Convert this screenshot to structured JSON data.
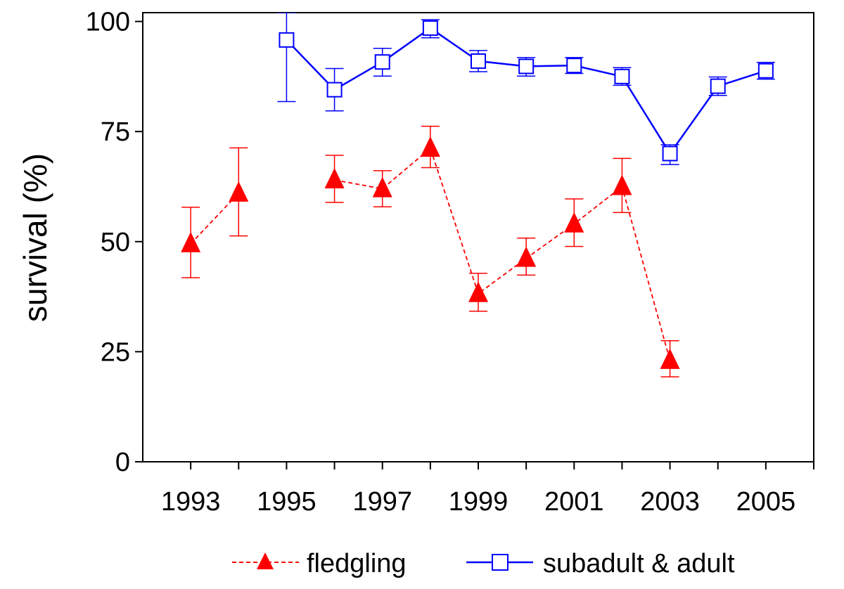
{
  "chart_data": {
    "type": "line",
    "title": "",
    "xlabel": "",
    "ylabel": "survival (%)",
    "xlim": [
      1992,
      2006
    ],
    "ylim": [
      0,
      102
    ],
    "x_ticks": [
      1993,
      1994,
      1995,
      1996,
      1997,
      1998,
      1999,
      2000,
      2001,
      2002,
      2003,
      2004,
      2005,
      2006
    ],
    "x_tick_labels": [
      "1993",
      "1995",
      "1997",
      "1999",
      "2001",
      "2003",
      "2005"
    ],
    "x_tick_label_years": [
      1993,
      1995,
      1997,
      1999,
      2001,
      2003,
      2005
    ],
    "y_ticks": [
      0,
      25,
      50,
      75,
      100
    ],
    "y_tick_labels": [
      "0",
      "25",
      "50",
      "75",
      "100"
    ],
    "grid": false,
    "legend_position": "bottom",
    "series": [
      {
        "name": "fledgling",
        "color": "#ff0000",
        "line_style": "dashed",
        "marker": "filled-triangle",
        "segments": [
          [
            {
              "x": 1993,
              "y": 49.5,
              "lo": 41.8,
              "hi": 57.8
            },
            {
              "x": 1994,
              "y": 61.0,
              "lo": 51.3,
              "hi": 71.3
            }
          ],
          [
            {
              "x": 1996,
              "y": 64.0,
              "lo": 58.9,
              "hi": 69.6
            },
            {
              "x": 1997,
              "y": 62.0,
              "lo": 57.9,
              "hi": 66.1
            },
            {
              "x": 1998,
              "y": 71.2,
              "lo": 66.8,
              "hi": 76.2
            },
            {
              "x": 1999,
              "y": 38.2,
              "lo": 34.2,
              "hi": 42.8
            },
            {
              "x": 2000,
              "y": 46.2,
              "lo": 42.4,
              "hi": 50.8
            },
            {
              "x": 2001,
              "y": 54.0,
              "lo": 48.9,
              "hi": 59.7
            },
            {
              "x": 2002,
              "y": 62.5,
              "lo": 56.6,
              "hi": 68.9
            },
            {
              "x": 2003,
              "y": 23.0,
              "lo": 19.3,
              "hi": 27.5
            }
          ]
        ]
      },
      {
        "name": "subadult & adult",
        "color": "#0000ff",
        "line_style": "solid",
        "marker": "open-square",
        "segments": [
          [
            {
              "x": 1995,
              "y": 95.8,
              "lo": 81.8,
              "hi": 102.0
            },
            {
              "x": 1996,
              "y": 84.5,
              "lo": 79.7,
              "hi": 89.3
            },
            {
              "x": 1997,
              "y": 90.8,
              "lo": 87.6,
              "hi": 93.9
            },
            {
              "x": 1998,
              "y": 98.5,
              "lo": 96.3,
              "hi": 100.4
            },
            {
              "x": 1999,
              "y": 91.0,
              "lo": 88.6,
              "hi": 93.4
            },
            {
              "x": 2000,
              "y": 89.8,
              "lo": 87.6,
              "hi": 91.8
            },
            {
              "x": 2001,
              "y": 90.0,
              "lo": 88.2,
              "hi": 91.8
            },
            {
              "x": 2002,
              "y": 87.5,
              "lo": 85.5,
              "hi": 89.5
            },
            {
              "x": 2003,
              "y": 70.0,
              "lo": 67.5,
              "hi": 72.0
            },
            {
              "x": 2004,
              "y": 85.3,
              "lo": 83.2,
              "hi": 87.4
            },
            {
              "x": 2005,
              "y": 88.8,
              "lo": 86.9,
              "hi": 90.7
            }
          ]
        ]
      }
    ]
  }
}
